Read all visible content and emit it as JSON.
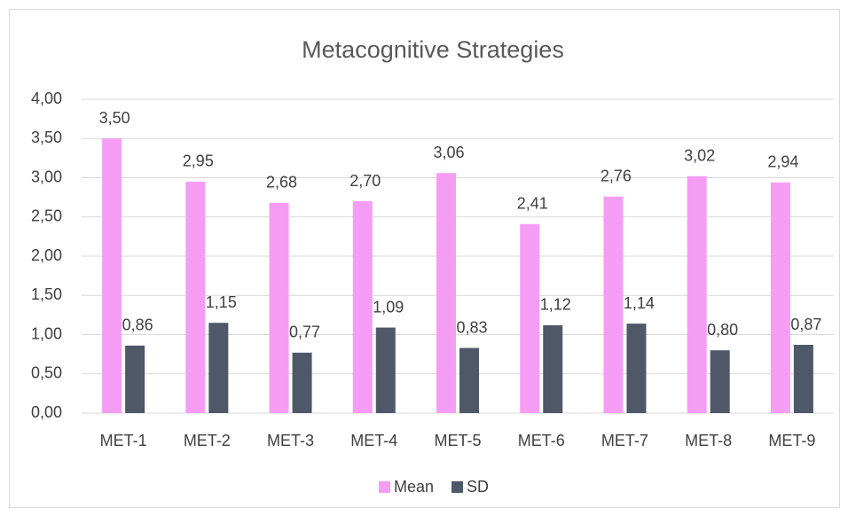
{
  "chart_data": {
    "type": "bar",
    "title": "Metacognitive Strategies",
    "categories": [
      "MET-1",
      "MET-2",
      "MET-3",
      "MET-4",
      "MET-5",
      "MET-6",
      "MET-7",
      "MET-8",
      "MET-9"
    ],
    "series": [
      {
        "name": "Mean",
        "color": "#f59df5",
        "values": [
          3.5,
          2.95,
          2.68,
          2.7,
          3.06,
          2.41,
          2.76,
          3.02,
          2.94
        ],
        "value_labels": [
          "3,50",
          "2,95",
          "2,68",
          "2,70",
          "3,06",
          "2,41",
          "2,76",
          "3,02",
          "2,94"
        ]
      },
      {
        "name": "SD",
        "color": "#4e5869",
        "values": [
          0.86,
          1.15,
          0.77,
          1.09,
          0.83,
          1.12,
          1.14,
          0.8,
          0.87
        ],
        "value_labels": [
          "0,86",
          "1,15",
          "0,77",
          "1,09",
          "0,83",
          "1,12",
          "1,14",
          "0,80",
          "0,87"
        ]
      }
    ],
    "ylim": [
      0,
      4
    ],
    "yticks": [
      {
        "value": 0,
        "label": "0,00"
      },
      {
        "value": 0.5,
        "label": "0,50"
      },
      {
        "value": 1,
        "label": "1,00"
      },
      {
        "value": 1.5,
        "label": "1,50"
      },
      {
        "value": 2,
        "label": "2,00"
      },
      {
        "value": 2.5,
        "label": "2,50"
      },
      {
        "value": 3,
        "label": "3,00"
      },
      {
        "value": 3.5,
        "label": "3,50"
      },
      {
        "value": 4,
        "label": "4,00"
      }
    ],
    "grid": true,
    "legend": "bottom"
  }
}
